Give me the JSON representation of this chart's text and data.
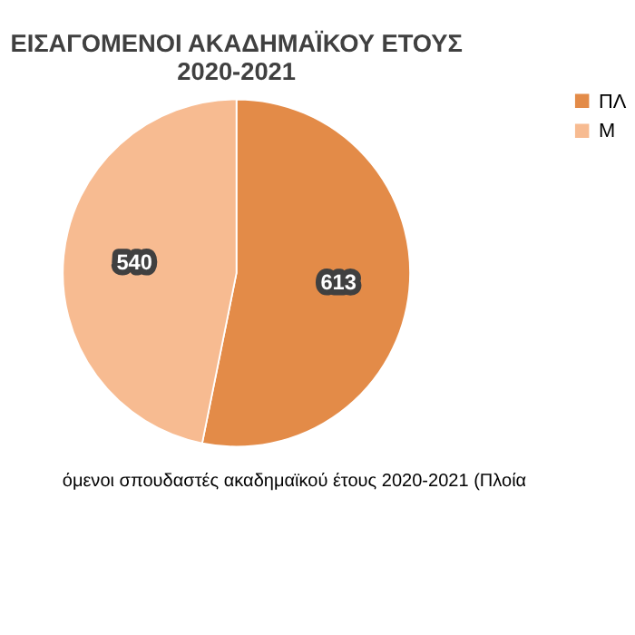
{
  "chart_data": {
    "type": "pie",
    "title": "ΕΙΣΑΓΟΜΕΝΟΙ ΑΚΑΔΗΜΑΪΚΟΥ ΕΤΟΥΣ 2020-2021",
    "categories": [
      "ΠΛ",
      "Μ"
    ],
    "values": [
      613,
      540
    ],
    "colors": [
      "#e38b48",
      "#f7bb91"
    ],
    "data_labels": true,
    "legend": "right",
    "annotations": [
      "όμενοι σπουδαστές ακαδημαϊκού έτους 2020-2021 (Πλοία"
    ]
  }
}
